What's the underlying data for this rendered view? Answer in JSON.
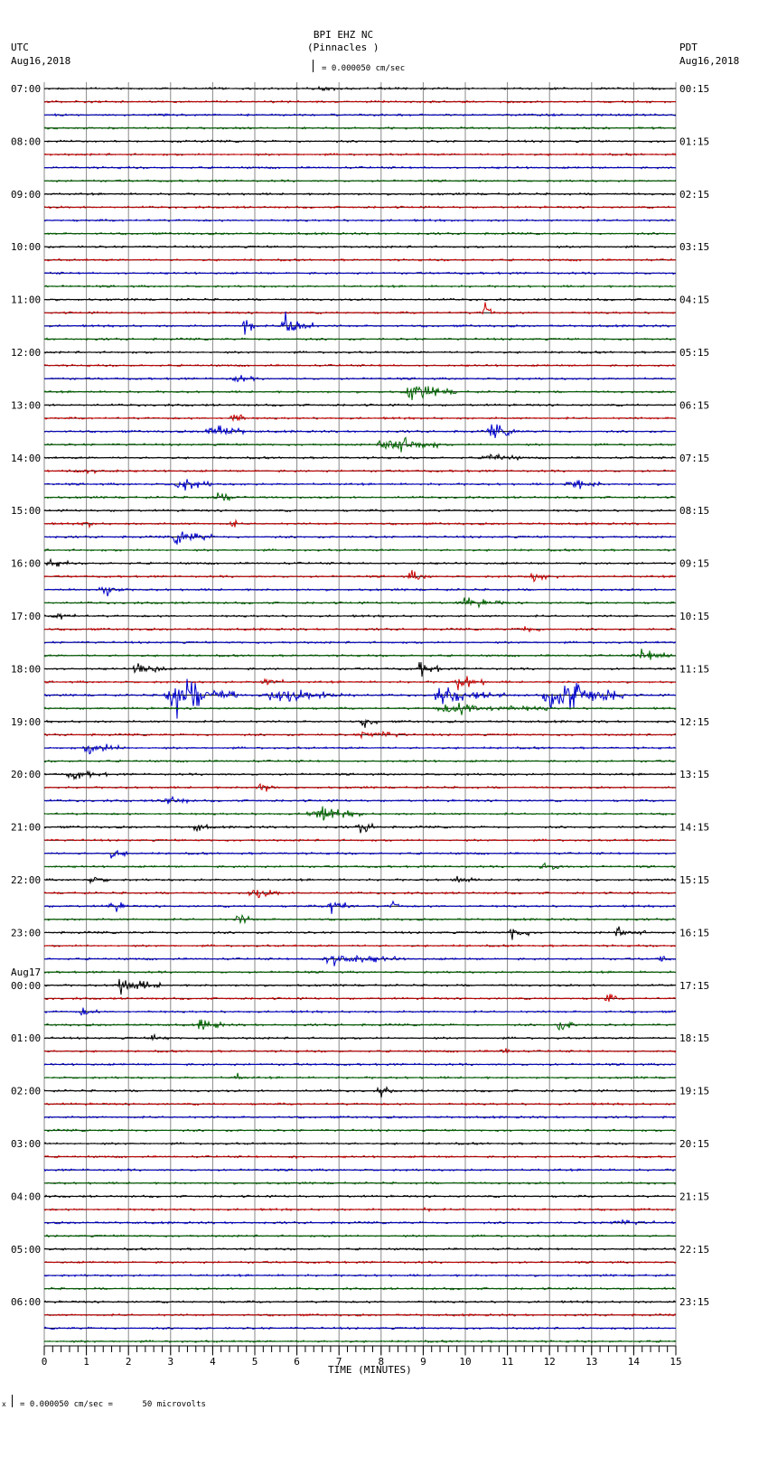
{
  "header": {
    "station": "BPI EHZ NC",
    "location": "(Pinnacles )",
    "left_tz": "UTC",
    "left_date": "Aug16,2018",
    "right_tz": "PDT",
    "right_date": "Aug16,2018",
    "scale_label": "= 0.000050 cm/sec"
  },
  "footer": {
    "scale_note": "= 0.000050 cm/sec =      50 microvolts",
    "prefix": "x"
  },
  "chart_data": {
    "type": "line",
    "title": "BPI EHZ NC (Pinnacles )",
    "xlabel": "TIME (MINUTES)",
    "ylabel": "",
    "xlim": [
      0,
      15
    ],
    "x_ticks": [
      "0",
      "1",
      "2",
      "3",
      "4",
      "5",
      "6",
      "7",
      "8",
      "9",
      "10",
      "11",
      "12",
      "13",
      "14",
      "15"
    ],
    "rows_per_hour": 4,
    "row_count": 96,
    "trace_colors": [
      "#000000",
      "#cc0000",
      "#0000cc",
      "#006600"
    ],
    "grid": true,
    "left_labels": [
      {
        "row": 0,
        "text": "07:00"
      },
      {
        "row": 4,
        "text": "08:00"
      },
      {
        "row": 8,
        "text": "09:00"
      },
      {
        "row": 12,
        "text": "10:00"
      },
      {
        "row": 16,
        "text": "11:00"
      },
      {
        "row": 20,
        "text": "12:00"
      },
      {
        "row": 24,
        "text": "13:00"
      },
      {
        "row": 28,
        "text": "14:00"
      },
      {
        "row": 32,
        "text": "15:00"
      },
      {
        "row": 36,
        "text": "16:00"
      },
      {
        "row": 40,
        "text": "17:00"
      },
      {
        "row": 44,
        "text": "18:00"
      },
      {
        "row": 48,
        "text": "19:00"
      },
      {
        "row": 52,
        "text": "20:00"
      },
      {
        "row": 56,
        "text": "21:00"
      },
      {
        "row": 60,
        "text": "22:00"
      },
      {
        "row": 64,
        "text": "23:00"
      },
      {
        "row": 67,
        "text": "Aug17"
      },
      {
        "row": 68,
        "text": "00:00"
      },
      {
        "row": 72,
        "text": "01:00"
      },
      {
        "row": 76,
        "text": "02:00"
      },
      {
        "row": 80,
        "text": "03:00"
      },
      {
        "row": 84,
        "text": "04:00"
      },
      {
        "row": 88,
        "text": "05:00"
      },
      {
        "row": 92,
        "text": "06:00"
      }
    ],
    "right_labels": [
      {
        "row": 0,
        "text": "00:15"
      },
      {
        "row": 4,
        "text": "01:15"
      },
      {
        "row": 8,
        "text": "02:15"
      },
      {
        "row": 12,
        "text": "03:15"
      },
      {
        "row": 16,
        "text": "04:15"
      },
      {
        "row": 20,
        "text": "05:15"
      },
      {
        "row": 24,
        "text": "06:15"
      },
      {
        "row": 28,
        "text": "07:15"
      },
      {
        "row": 32,
        "text": "08:15"
      },
      {
        "row": 36,
        "text": "09:15"
      },
      {
        "row": 40,
        "text": "10:15"
      },
      {
        "row": 44,
        "text": "11:15"
      },
      {
        "row": 48,
        "text": "12:15"
      },
      {
        "row": 52,
        "text": "13:15"
      },
      {
        "row": 56,
        "text": "14:15"
      },
      {
        "row": 60,
        "text": "15:15"
      },
      {
        "row": 64,
        "text": "16:15"
      },
      {
        "row": 68,
        "text": "17:15"
      },
      {
        "row": 72,
        "text": "18:15"
      },
      {
        "row": 76,
        "text": "19:15"
      },
      {
        "row": 80,
        "text": "20:15"
      },
      {
        "row": 84,
        "text": "21:15"
      },
      {
        "row": 88,
        "text": "22:15"
      },
      {
        "row": 92,
        "text": "23:15"
      }
    ],
    "events": [
      {
        "row": 0,
        "start": 6.5,
        "end": 6.9,
        "amp": 6
      },
      {
        "row": 18,
        "start": 4.7,
        "end": 5.0,
        "amp": 24
      },
      {
        "row": 18,
        "start": 5.6,
        "end": 6.4,
        "amp": 20
      },
      {
        "row": 17,
        "start": 10.4,
        "end": 10.7,
        "amp": 20
      },
      {
        "row": 22,
        "start": 4.4,
        "end": 5.0,
        "amp": 5
      },
      {
        "row": 23,
        "start": 8.5,
        "end": 9.8,
        "amp": 10
      },
      {
        "row": 25,
        "start": 4.4,
        "end": 4.8,
        "amp": 12
      },
      {
        "row": 26,
        "start": 3.8,
        "end": 4.8,
        "amp": 10
      },
      {
        "row": 26,
        "start": 10.5,
        "end": 11.3,
        "amp": 9
      },
      {
        "row": 27,
        "start": 7.9,
        "end": 9.4,
        "amp": 14
      },
      {
        "row": 28,
        "start": 10.4,
        "end": 11.3,
        "amp": 6
      },
      {
        "row": 29,
        "start": 0.5,
        "end": 1.8,
        "amp": 3
      },
      {
        "row": 30,
        "start": 3.0,
        "end": 4.0,
        "amp": 9
      },
      {
        "row": 30,
        "start": 12.3,
        "end": 13.3,
        "amp": 7
      },
      {
        "row": 31,
        "start": 3.9,
        "end": 4.8,
        "amp": 5
      },
      {
        "row": 33,
        "start": 0.9,
        "end": 1.2,
        "amp": 7
      },
      {
        "row": 33,
        "start": 4.4,
        "end": 4.6,
        "amp": 9
      },
      {
        "row": 34,
        "start": 3.0,
        "end": 4.0,
        "amp": 10
      },
      {
        "row": 36,
        "start": 0.0,
        "end": 0.6,
        "amp": 6
      },
      {
        "row": 37,
        "start": 8.6,
        "end": 9.2,
        "amp": 6
      },
      {
        "row": 37,
        "start": 11.5,
        "end": 12.2,
        "amp": 5
      },
      {
        "row": 38,
        "start": 1.3,
        "end": 1.9,
        "amp": 9
      },
      {
        "row": 39,
        "start": 9.8,
        "end": 11.0,
        "amp": 6
      },
      {
        "row": 40,
        "start": 0.2,
        "end": 0.8,
        "amp": 5
      },
      {
        "row": 41,
        "start": 11.2,
        "end": 11.9,
        "amp": 4
      },
      {
        "row": 43,
        "start": 14.0,
        "end": 15.0,
        "amp": 8
      },
      {
        "row": 44,
        "start": 2.1,
        "end": 2.9,
        "amp": 10
      },
      {
        "row": 44,
        "start": 8.8,
        "end": 9.5,
        "amp": 9
      },
      {
        "row": 45,
        "start": 5.1,
        "end": 5.7,
        "amp": 7
      },
      {
        "row": 45,
        "start": 9.7,
        "end": 10.5,
        "amp": 10
      },
      {
        "row": 46,
        "start": 2.8,
        "end": 4.6,
        "amp": 26
      },
      {
        "row": 46,
        "start": 5.1,
        "end": 7.5,
        "amp": 8
      },
      {
        "row": 46,
        "start": 9.1,
        "end": 11.0,
        "amp": 9
      },
      {
        "row": 46,
        "start": 11.8,
        "end": 13.8,
        "amp": 24
      },
      {
        "row": 47,
        "start": 9.2,
        "end": 12.0,
        "amp": 7
      },
      {
        "row": 48,
        "start": 7.5,
        "end": 8.0,
        "amp": 6
      },
      {
        "row": 49,
        "start": 7.4,
        "end": 8.7,
        "amp": 5
      },
      {
        "row": 50,
        "start": 0.9,
        "end": 2.0,
        "amp": 8
      },
      {
        "row": 52,
        "start": 0.5,
        "end": 1.5,
        "amp": 5
      },
      {
        "row": 53,
        "start": 5.0,
        "end": 5.5,
        "amp": 8
      },
      {
        "row": 54,
        "start": 2.7,
        "end": 3.5,
        "amp": 6
      },
      {
        "row": 55,
        "start": 6.2,
        "end": 7.6,
        "amp": 9
      },
      {
        "row": 56,
        "start": 3.5,
        "end": 4.0,
        "amp": 5
      },
      {
        "row": 56,
        "start": 7.4,
        "end": 8.0,
        "amp": 7
      },
      {
        "row": 58,
        "start": 1.5,
        "end": 2.0,
        "amp": 6
      },
      {
        "row": 59,
        "start": 11.7,
        "end": 12.5,
        "amp": 5
      },
      {
        "row": 60,
        "start": 1.0,
        "end": 1.6,
        "amp": 4
      },
      {
        "row": 60,
        "start": 9.7,
        "end": 10.2,
        "amp": 6
      },
      {
        "row": 61,
        "start": 4.8,
        "end": 5.7,
        "amp": 6
      },
      {
        "row": 62,
        "start": 1.5,
        "end": 2.0,
        "amp": 9
      },
      {
        "row": 62,
        "start": 6.7,
        "end": 7.4,
        "amp": 11
      },
      {
        "row": 62,
        "start": 8.2,
        "end": 8.5,
        "amp": 9
      },
      {
        "row": 63,
        "start": 4.5,
        "end": 5.0,
        "amp": 7
      },
      {
        "row": 64,
        "start": 11.0,
        "end": 11.6,
        "amp": 9
      },
      {
        "row": 64,
        "start": 13.5,
        "end": 14.3,
        "amp": 6
      },
      {
        "row": 66,
        "start": 6.5,
        "end": 8.5,
        "amp": 8
      },
      {
        "row": 66,
        "start": 14.6,
        "end": 14.8,
        "amp": 9
      },
      {
        "row": 68,
        "start": 1.6,
        "end": 2.8,
        "amp": 10
      },
      {
        "row": 69,
        "start": 13.3,
        "end": 13.6,
        "amp": 7
      },
      {
        "row": 70,
        "start": 0.8,
        "end": 1.3,
        "amp": 5
      },
      {
        "row": 71,
        "start": 3.6,
        "end": 4.3,
        "amp": 7
      },
      {
        "row": 71,
        "start": 12.1,
        "end": 12.9,
        "amp": 6
      },
      {
        "row": 72,
        "start": 2.5,
        "end": 3.0,
        "amp": 4
      },
      {
        "row": 73,
        "start": 10.8,
        "end": 11.2,
        "amp": 5
      },
      {
        "row": 75,
        "start": 4.5,
        "end": 4.8,
        "amp": 5
      },
      {
        "row": 76,
        "start": 7.9,
        "end": 8.3,
        "amp": 7
      },
      {
        "row": 81,
        "start": 5.8,
        "end": 6.0,
        "amp": 4
      },
      {
        "row": 85,
        "start": 9.0,
        "end": 9.2,
        "amp": 5
      },
      {
        "row": 86,
        "start": 13.3,
        "end": 14.5,
        "amp": 3
      }
    ]
  }
}
